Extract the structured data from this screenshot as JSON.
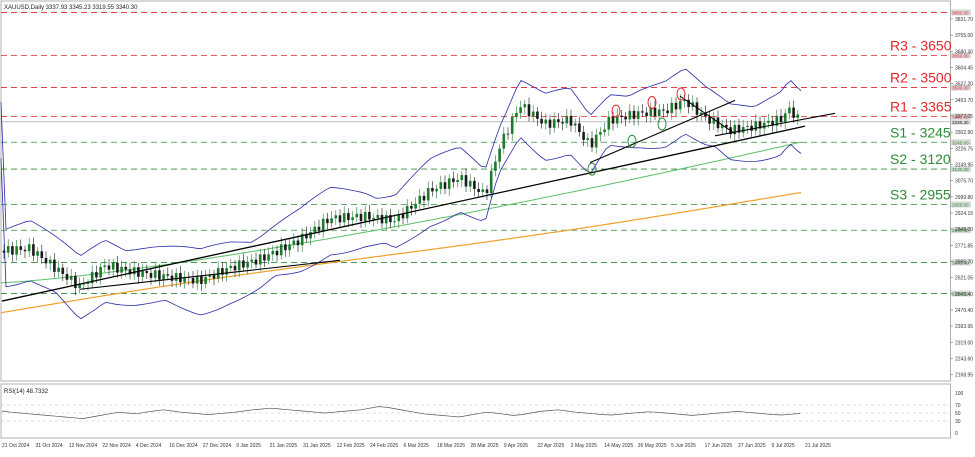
{
  "header": {
    "symbol_line": "XAUUSD,Daily  3337.93 3345.23 3319.55 3340.30",
    "rsi_line": "RSI(14) 48.7332"
  },
  "colors": {
    "resistance": "#e3262c",
    "support": "#2e8b3a",
    "bollinger": "#2a2aa8",
    "ma100": "#5cbf6a",
    "ma200": "#f0a02e",
    "trendline": "#000000",
    "bull_candle": "#1c7a2c",
    "bear_candle": "#1a1a1a",
    "rsi": "#555555",
    "price_label_bg": "#e0e0e0",
    "level_tag_bg": "#d9d9d9"
  },
  "chart_data": {
    "type": "candlestick",
    "title": "XAUUSD,Daily",
    "ohlc_last": {
      "open": 3337.93,
      "high": 3345.23,
      "low": 3319.55,
      "close": 3340.3
    },
    "ylim": [
      2137.17,
      3898.61
    ],
    "y_ticks": [
      "3831.70",
      "3755.00",
      "3680.30",
      "3604.45",
      "3527.20",
      "3453.70",
      "3377.05",
      "3302.90",
      "3226.75",
      "3149.95",
      "3075.70",
      "2999.80",
      "2924.15",
      "2848.00",
      "2771.85",
      "2695.70",
      "2621.05",
      "2545.40",
      "2470.40",
      "2393.95",
      "2319.00",
      "2243.60",
      "2168.95"
    ],
    "x_ticks": [
      "21 Oct 2024",
      "31 Oct 2024",
      "12 Nov 2024",
      "22 Nov 2024",
      "4 Dec 2024",
      "16 Dec 2024",
      "27 Dec 2024",
      "9 Jan 2025",
      "21 Jan 2025",
      "31 Jan 2025",
      "12 Feb 2025",
      "24 Feb 2025",
      "6 Mar 2025",
      "18 Mar 2025",
      "28 Mar 2025",
      "9 Apr 2025",
      "22 Apr 2025",
      "2 May 2025",
      "14 May 2025",
      "26 May 2025",
      "5 Jun 2025",
      "17 Jun 2025",
      "27 Jun 2025",
      "9 Jul 2025",
      "21 Jul 2025"
    ],
    "levels": [
      {
        "label": "R3 - 3650",
        "value": 3650,
        "tag": "3650.00",
        "kind": "resistance"
      },
      {
        "label": "R2 - 3500",
        "value": 3500,
        "tag": "3500.00",
        "kind": "resistance"
      },
      {
        "label": "R1 - 3365",
        "value": 3365,
        "tag": "3365.00",
        "kind": "resistance"
      },
      {
        "label": "S1 - 3245",
        "value": 3245,
        "tag": "3245.00",
        "kind": "support"
      },
      {
        "label": "S2 - 3120",
        "value": 3120,
        "tag": "3120.00",
        "kind": "support"
      },
      {
        "label": "S3 - 2955",
        "value": 2955,
        "tag": "2955.00",
        "kind": "support"
      }
    ],
    "extra_levels": [
      {
        "value": 3850,
        "tag": "3850.00",
        "kind": "resistance"
      },
      {
        "value": 2835,
        "tag": "2835.00",
        "kind": "support"
      },
      {
        "value": 2685,
        "tag": "2685.00",
        "kind": "support"
      },
      {
        "value": 2540,
        "tag": "2540.00",
        "kind": "support"
      }
    ],
    "current_price_tag": "3340.30",
    "rsi": {
      "label": "RSI(14) 48.7332",
      "ylim": [
        0,
        100
      ],
      "ticks": [
        "100",
        "70",
        "50",
        "30",
        "0"
      ],
      "values": [
        55,
        52,
        50,
        48,
        46,
        44,
        42,
        40,
        38,
        36,
        40,
        44,
        48,
        52,
        50,
        48,
        52,
        55,
        58,
        55,
        52,
        50,
        48,
        46,
        48,
        50,
        52,
        55,
        58,
        60,
        62,
        60,
        58,
        56,
        54,
        52,
        50,
        52,
        54,
        56,
        58,
        62,
        66,
        64,
        60,
        56,
        52,
        48,
        46,
        44,
        42,
        40,
        44,
        48,
        52,
        50,
        47,
        44,
        46,
        50,
        54,
        56,
        58,
        55,
        52,
        50,
        48,
        46,
        45,
        47,
        49,
        51,
        53,
        52,
        50,
        48,
        46,
        44,
        46,
        48,
        50,
        52,
        54,
        52,
        50,
        48,
        46,
        45,
        47,
        48.73
      ]
    }
  }
}
